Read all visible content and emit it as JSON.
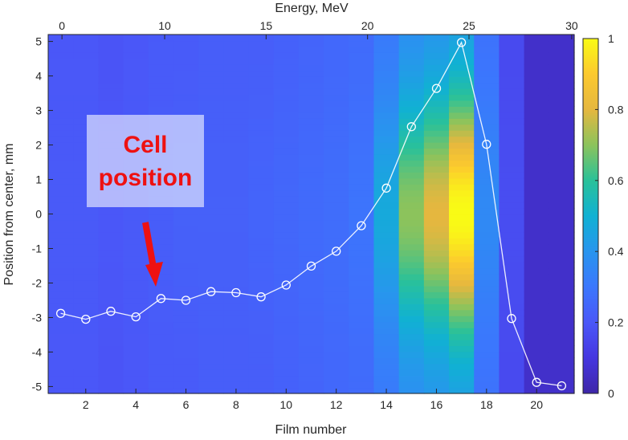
{
  "chart_data": {
    "type": "heatmap",
    "xlabel": "Film number",
    "ylabel": "Position from center, mm",
    "x2label": "Energy, MeV",
    "xlim": [
      0.5,
      21.5
    ],
    "ylim": [
      -5.2,
      5.2
    ],
    "x_ticks": [
      2,
      4,
      6,
      8,
      10,
      12,
      14,
      16,
      18,
      20
    ],
    "y_ticks": [
      -5,
      -4,
      -3,
      -2,
      -1,
      0,
      1,
      2,
      3,
      4,
      5
    ],
    "energy_ticks": [
      {
        "label": "0",
        "film": 1.05
      },
      {
        "label": "10",
        "film": 5.15
      },
      {
        "label": "15",
        "film": 9.2
      },
      {
        "label": "20",
        "film": 13.25
      },
      {
        "label": "25",
        "film": 17.3
      },
      {
        "label": "30",
        "film": 21.4
      }
    ],
    "colorbar": {
      "min": 0,
      "max": 1,
      "ticks": [
        0,
        0.2,
        0.4,
        0.6,
        0.8,
        1
      ]
    },
    "heatmap_columns": [
      {
        "film": 1,
        "peak": 0.21,
        "base": 0.2
      },
      {
        "film": 2,
        "peak": 0.21,
        "base": 0.2
      },
      {
        "film": 3,
        "peak": 0.2,
        "base": 0.19
      },
      {
        "film": 4,
        "peak": 0.21,
        "base": 0.2
      },
      {
        "film": 5,
        "peak": 0.22,
        "base": 0.21
      },
      {
        "film": 6,
        "peak": 0.23,
        "base": 0.21
      },
      {
        "film": 7,
        "peak": 0.23,
        "base": 0.22
      },
      {
        "film": 8,
        "peak": 0.23,
        "base": 0.22
      },
      {
        "film": 9,
        "peak": 0.24,
        "base": 0.22
      },
      {
        "film": 10,
        "peak": 0.25,
        "base": 0.23
      },
      {
        "film": 11,
        "peak": 0.26,
        "base": 0.24
      },
      {
        "film": 12,
        "peak": 0.27,
        "base": 0.25
      },
      {
        "film": 13,
        "peak": 0.29,
        "base": 0.26
      },
      {
        "film": 14,
        "peak": 0.47,
        "base": 0.3
      },
      {
        "film": 15,
        "peak": 0.7,
        "base": 0.36
      },
      {
        "film": 16,
        "peak": 0.8,
        "base": 0.38
      },
      {
        "film": 17,
        "peak": 1.0,
        "base": 0.4
      },
      {
        "film": 18,
        "peak": 0.36,
        "base": 0.28
      },
      {
        "film": 19,
        "peak": 0.17,
        "base": 0.16
      },
      {
        "film": 20,
        "peak": 0.06,
        "base": 0.06
      },
      {
        "film": 21,
        "peak": 0.06,
        "base": 0.06
      }
    ],
    "series": [
      {
        "name": "Cell position",
        "x": [
          1,
          2,
          3,
          4,
          5,
          6,
          7,
          8,
          9,
          10,
          11,
          12,
          13,
          14,
          15,
          16,
          17,
          18,
          19,
          20,
          21
        ],
        "y": [
          -2.88,
          -3.05,
          -2.82,
          -2.98,
          -2.45,
          -2.5,
          -2.25,
          -2.28,
          -2.4,
          -2.06,
          -1.51,
          -1.08,
          -0.34,
          0.75,
          2.53,
          3.64,
          4.97,
          2.02,
          -3.03,
          -4.88,
          -4.98
        ]
      }
    ],
    "annotation": {
      "lines": [
        "Cell",
        "position"
      ]
    }
  }
}
